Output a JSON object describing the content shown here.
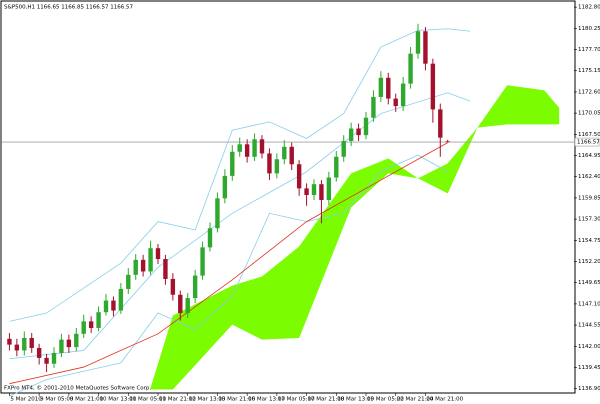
{
  "chart_data": {
    "type": "candlestick",
    "title": "S&P500,H1  1166.65 1166.85 1166.57 1166.57",
    "footer": "FXPro MT4, © 2001-2010 MetaQuotes Software Corp.",
    "categories": [
      "5 Mar 2010",
      null,
      null,
      null,
      "9 Mar 05:00",
      null,
      null,
      null,
      "9 Mar 21:00",
      null,
      null,
      null,
      "10 Mar 13:00",
      null,
      null,
      null,
      "11 Mar 05:00",
      null,
      null,
      null,
      "11 Mar 21:00",
      null,
      null,
      null,
      "12 Mar 13:00",
      null,
      null,
      null,
      "15 Mar 21:00",
      null,
      null,
      null,
      "16 Mar 13:00",
      null,
      null,
      null,
      "17 Mar 05:00",
      null,
      null,
      null,
      "17 Mar 21:00",
      null,
      null,
      null,
      "18 Mar 13:00",
      null,
      null,
      null,
      "19 Mar 05:00",
      null,
      null,
      null,
      "22 Mar 21:00",
      null,
      null,
      null,
      "24 Mar 21:00",
      null,
      null,
      null
    ],
    "open": [
      1142.9,
      1142.2,
      1141.5,
      1143.0,
      1141.8,
      1140.6,
      1139.9,
      1141.2,
      1142.8,
      1141.9,
      1143.5,
      1145.0,
      1144.2,
      1146.1,
      1147.5,
      1146.3,
      1148.9,
      1150.6,
      1152.4,
      1151.0,
      1153.8,
      1152.5,
      1150.1,
      1148.2,
      1146.0,
      1147.8,
      1150.5,
      1153.9,
      1156.2,
      1159.8,
      1162.5,
      1165.4,
      1166.3,
      1164.8,
      1166.9,
      1165.2,
      1162.8,
      1164.5,
      1166.0,
      1163.9,
      1161.0,
      1160.2,
      1161.5,
      1159.6,
      1162.3,
      1164.8,
      1166.7,
      1168.2,
      1167.4,
      1169.5,
      1172.0,
      1174.3,
      1171.8,
      1170.9,
      1173.6,
      1177.2,
      1179.9,
      1176.0,
      1170.5,
      1166.65
    ],
    "high": [
      1143.6,
      1142.9,
      1143.8,
      1143.6,
      1142.3,
      1141.1,
      1141.9,
      1143.5,
      1143.4,
      1144.2,
      1145.8,
      1145.6,
      1146.8,
      1148.3,
      1148.0,
      1149.6,
      1151.4,
      1153.1,
      1153.0,
      1154.7,
      1154.3,
      1153.0,
      1150.8,
      1148.7,
      1148.4,
      1151.2,
      1154.6,
      1156.9,
      1160.5,
      1163.3,
      1166.2,
      1167.1,
      1166.9,
      1167.6,
      1167.4,
      1165.8,
      1165.2,
      1166.8,
      1166.5,
      1164.4,
      1161.6,
      1162.1,
      1162.0,
      1163.0,
      1165.5,
      1167.4,
      1168.9,
      1168.8,
      1170.2,
      1172.8,
      1175.1,
      1174.9,
      1172.4,
      1174.4,
      1178.0,
      1180.8,
      1180.4,
      1176.6,
      1171.2,
      1166.85
    ],
    "low": [
      1141.5,
      1140.8,
      1140.9,
      1141.2,
      1139.8,
      1138.9,
      1139.4,
      1140.7,
      1141.2,
      1141.4,
      1143.0,
      1143.6,
      1143.8,
      1145.7,
      1145.6,
      1145.9,
      1148.3,
      1150.0,
      1150.4,
      1150.6,
      1151.9,
      1149.4,
      1147.5,
      1145.1,
      1145.4,
      1147.2,
      1150.0,
      1153.4,
      1155.7,
      1159.2,
      1161.9,
      1164.8,
      1164.1,
      1164.3,
      1164.6,
      1162.0,
      1162.2,
      1163.9,
      1163.2,
      1160.1,
      1158.9,
      1159.6,
      1156.8,
      1159.0,
      1161.8,
      1164.2,
      1166.1,
      1166.7,
      1166.9,
      1169.0,
      1171.4,
      1171.1,
      1170.2,
      1170.3,
      1173.0,
      1176.6,
      1175.2,
      1168.9,
      1164.8,
      1166.57
    ],
    "close": [
      1142.2,
      1141.5,
      1143.0,
      1141.8,
      1140.6,
      1139.9,
      1141.2,
      1142.8,
      1141.9,
      1143.5,
      1145.0,
      1144.2,
      1146.1,
      1147.5,
      1146.3,
      1148.9,
      1150.6,
      1152.4,
      1151.0,
      1153.8,
      1152.5,
      1150.1,
      1148.2,
      1146.0,
      1147.8,
      1150.5,
      1153.9,
      1156.2,
      1159.8,
      1162.5,
      1165.4,
      1166.3,
      1164.8,
      1166.9,
      1165.2,
      1162.8,
      1164.5,
      1166.0,
      1163.9,
      1161.0,
      1160.2,
      1161.5,
      1159.6,
      1162.3,
      1164.8,
      1166.7,
      1168.2,
      1167.4,
      1169.5,
      1172.0,
      1174.3,
      1171.8,
      1170.9,
      1173.6,
      1177.2,
      1179.9,
      1176.0,
      1170.5,
      1167.1,
      1166.57
    ],
    "up_color": "#2fa82f",
    "down_color": "#a3122c",
    "lines": [
      {
        "color": "#87ceeb",
        "x": [
          0,
          5,
          10,
          15,
          20,
          25,
          30,
          35,
          40,
          45,
          50,
          55,
          59,
          62
        ],
        "values": [
          1145,
          1146,
          1149,
          1152,
          1157,
          1156,
          1168,
          1169,
          1167,
          1170,
          1178,
          1180,
          1180.2,
          1179.9
        ]
      },
      {
        "color": "#87ceeb",
        "x": [
          0,
          5,
          10,
          15,
          20,
          25,
          30,
          35,
          40,
          45,
          50,
          55,
          59
        ],
        "values": [
          1136,
          1138,
          1139,
          1140,
          1146,
          1144,
          1148,
          1158,
          1157,
          1158,
          1163,
          1165,
          1163
        ]
      },
      {
        "color": "#87ceeb",
        "x": [
          0,
          10,
          20,
          30,
          40,
          50,
          59,
          62
        ],
        "values": [
          1140.5,
          1141.5,
          1151.5,
          1158,
          1163,
          1170,
          1172.5,
          1171.5
        ]
      },
      {
        "color": "#e03020",
        "x": [
          0,
          10,
          20,
          30,
          40,
          50,
          59
        ],
        "values": [
          1137.5,
          1139.5,
          1143.5,
          1150,
          1157,
          1162,
          1166.5
        ]
      }
    ],
    "cloud": {
      "color": "#7cfc00",
      "x": [
        19,
        22,
        30,
        34,
        39,
        46,
        51,
        55,
        59,
        63,
        67,
        72,
        74
      ],
      "upper": [
        1137,
        1145.7,
        1149.3,
        1150.4,
        1154,
        1162.8,
        1164.6,
        1162.2,
        1164,
        1168.3,
        1173.4,
        1172.8,
        1170.7
      ],
      "lower": [
        1136.8,
        1136.8,
        1144.6,
        1142.8,
        1143,
        1158.7,
        1162.8,
        1162.2,
        1160.4,
        1168.3,
        1168.7,
        1168.7,
        1168.7
      ]
    },
    "current_price": 1166.57,
    "xlim": [
      -1,
      76
    ],
    "ylim": [
      1136.5,
      1183.3
    ],
    "yticks": [
      {
        "value": 1182.8,
        "label": "1182.80"
      },
      1180.25,
      {
        "value": 1177.7,
        "label": "1177.70"
      },
      1175.15,
      {
        "value": 1172.6,
        "label": "1172.60"
      },
      1170.05,
      {
        "value": 1167.5,
        "label": "1167.50"
      },
      1164.95,
      {
        "value": 1162.4,
        "label": "1162.40"
      },
      1159.85,
      {
        "value": 1157.3,
        "label": "1157.30"
      },
      1154.75,
      {
        "value": 1152.2,
        "label": "1152.20"
      },
      1149.65,
      {
        "value": 1147.1,
        "label": "1147.10"
      },
      1144.55,
      {
        "value": 1142.0,
        "label": "1142.00"
      },
      1139.45,
      {
        "value": 1136.9,
        "label": "1136.90"
      }
    ]
  }
}
